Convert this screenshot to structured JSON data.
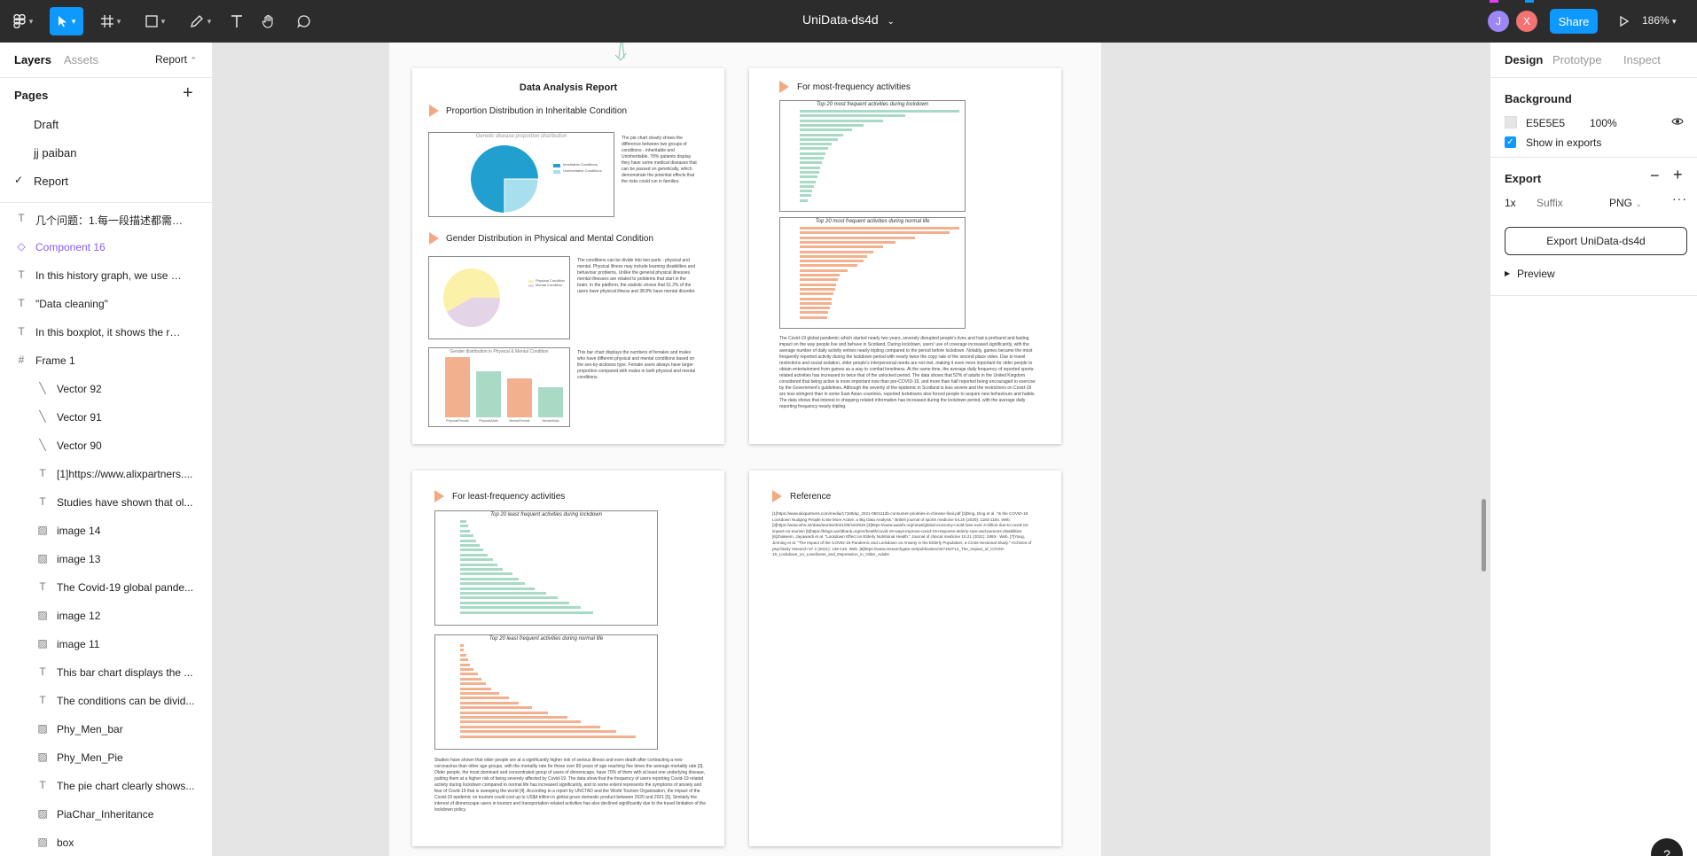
{
  "toolbar": {
    "file_title": "UniData-ds4d",
    "share_label": "Share",
    "zoom": "186%",
    "avatars": [
      {
        "letter": "J",
        "color": "#9b87f5"
      },
      {
        "letter": "X",
        "color": "#f47272"
      }
    ]
  },
  "left_panel": {
    "tabs": [
      "Layers",
      "Assets"
    ],
    "current_page": "Report",
    "pages_title": "Pages",
    "pages": [
      "Draft",
      "jj paiban",
      "Report"
    ],
    "layers": [
      {
        "icon": "text",
        "name": "几个问题：1.每一段描述都需要一..."
      },
      {
        "icon": "component",
        "name": "Component 16"
      },
      {
        "icon": "text",
        "name": "In this history graph, we use ge..."
      },
      {
        "icon": "text",
        "name": "\"Data cleaning\""
      },
      {
        "icon": "text",
        "name": "In this boxplot, it shows the relat..."
      },
      {
        "icon": "frame",
        "name": "Frame 1"
      },
      {
        "icon": "vector",
        "name": "Vector 92"
      },
      {
        "icon": "vector",
        "name": "Vector 91"
      },
      {
        "icon": "vector",
        "name": "Vector 90"
      },
      {
        "icon": "text",
        "name": "[1]https://www.alixpartners...."
      },
      {
        "icon": "text",
        "name": "Studies have shown that ol..."
      },
      {
        "icon": "image",
        "name": "image 14"
      },
      {
        "icon": "image",
        "name": "image 13"
      },
      {
        "icon": "text",
        "name": "The Covid-19 global pande..."
      },
      {
        "icon": "image",
        "name": "image 12"
      },
      {
        "icon": "image",
        "name": "image 11"
      },
      {
        "icon": "text",
        "name": "This bar chart displays the ..."
      },
      {
        "icon": "text",
        "name": "The conditions can be divid..."
      },
      {
        "icon": "image",
        "name": "Phy_Men_bar"
      },
      {
        "icon": "image",
        "name": "Phy_Men_Pie"
      },
      {
        "icon": "text",
        "name": "The pie chart clearly shows..."
      },
      {
        "icon": "image",
        "name": "PiaChar_Inheritance"
      },
      {
        "icon": "image",
        "name": "box"
      }
    ]
  },
  "right_panel": {
    "tabs": [
      "Design",
      "Prototype",
      "Inspect"
    ],
    "background_title": "Background",
    "bg_hex": "E5E5E5",
    "bg_opacity": "100%",
    "show_in_exports": "Show in exports",
    "export_title": "Export",
    "export_scale": "1x",
    "export_suffix_placeholder": "Suffix",
    "export_format": "PNG",
    "export_button": "Export UniData-ds4d",
    "preview_label": "Preview"
  },
  "report": {
    "title": "Data Analysis Report",
    "sec1": "Proportion Distribution in Inheritable Condition",
    "sec1_chart_title": "Genetic disease proportion distribution",
    "sec1_legend": [
      "Inheritable Conditions",
      "Uninheritable Conditions"
    ],
    "sec1_text": "The pie chart clearly shows the difference between two groups of conditions - inheritable and Uninheritable. 78% patients display they have some medical diseases that can be passed on genetically, which demonstrate the potential effects that the risks could run in families.",
    "sec2": "Gender Distribution in Physical and Mental Condition",
    "sec2_text": "The conditions can be divide into two parts - physical and mental. Physical illness may include learning disabilities and behaviour problems. Unlike the general physical illnesses mental illnesses are related to problems that start in the brain. In the platform, the statistic shows that 61.2% of the users have physical illness and 38.8% have mental disorder.",
    "sec2_pie_legend": [
      "Physical Condition",
      "Mental Condition"
    ],
    "sec2_bar_title": "Gender distribution in Physical & Mental Condition",
    "sec2_bar_cats": [
      "Physical/Female",
      "Physical/Male",
      "Mental/Female",
      "Mental/Male"
    ],
    "sec2_bar_text": "This bar chart displays the numbers of females and males who have different physical and mental conditions based on the sex-by-sickness type. Female users always have larger proportion compared with males in both physical and mental conditions.",
    "sec3": "For most-frequency activities",
    "sec3_chart1_title": "Top 20 most frequent activities during lockdown",
    "sec3_chart2_title": "Top 20 most frequent activities during normal life",
    "sec3_text": "The Covid-19 global pandemic which started nearly two years, severely disrupted people's lives and had a profound and lasting impact on the way people live and behave in Scotland. During lockdown, users' use of coverage increased significantly, with the average number of daily activity entries nearly tripling compared to the period before lockdown. Notably, games became the most frequently reported activity during the lockdown period with nearly twice the copy rate of the second place video. Due to travel restrictions and social isolation, older people's interpersonal needs are not met, making it even more important for older people to obtain entertainment from games as a way to combat loneliness. At the same time, the average daily frequency of reported sports-related activities has increased to twice that of the unlocked period. The data shows that 52% of adults in the United Kingdom considered that being active is more important now than pre-COVID-19, and more than half reported being encouraged to exercise by the Government's guidelines. Although the severity of the epidemic in Scotland is less severe and the restrictions on Covid-19 are less stringent than in some East Asian countries, reported lockdowns also forced people to acquire new behaviours and habits. The data shows that interest in shopping related information has increased during the lockdown period, with the average daily reporting frequency nearly tripling.",
    "sec4": "For least-frequency activities",
    "sec4_chart1_title": "Top 20 least frequent activities during lockdown",
    "sec4_chart2_title": "Top 20 least frequent activities during normal life",
    "sec4_text": "Studies have shown that older people are at a significantly higher risk of serious illness and even death after contracting a new coronavirus than other age groups, with the mortality rate for those over 80 years of age reaching five times the average mortality rate [3]. Older people, the most dominant and concentrated group of users of dinnerscape, have 70% of them with at least one underlying disease, putting them at a higher risk of being severely affected by Covid-19. The data show that the frequency of users reporting Covid-19 related activity during lockdown compared to normal life has increased significantly, and to some extent represents the symptoms of anxiety and fear of Covid-19 that is sweeping the world [4]. According to a report by UNCTAD and the World Tourism Organisation, the impact of the Covid-19 epidemic on tourism could cost up to US$4 trillion in global gross domestic product between 2020 and 2021 [5]. Similarly the interest of dinnerscape users in tourism and transportation-related activities has also declined significantly due to the travel limitation of the lockdown policy.",
    "sec5": "Reference",
    "references": "[1]https://www.alixpartners.com/media/17188/ap_2021-0501112b-consumer-priorities-in-chinese-final.pdf [2]Ding, Ding et al. \"Is the COVID-19 Lockdown Nudging People to Be More Active: a Big Data Analysis.\" British journal of sports medicine 54.20 (2020): 1183-1184. Web. [3]https://www.who.int/data/stories/2021/06/16/2020 [4]https://www.wwwfo.org/news/global-economy-could-lose-over-4-trillion-due-to-covid-19-impact-on-tourism [5]https://blogs.worldbank.org/en/health/covid-19-ways-improve-covid-19-response-elderly-care-and-persons-disabilities [6]Jhakeem, Jayawardi et al. \"Lockdown Effect on Elderly Nutritional Health.\" Journal of clinical medicine 10.21 (2021): 2893-. Web. [7]Yang, Jinming et al. \"The Impact of the COVID-19 Pandemic and Lockdown on Anxiety in the Elderly Population: a Cross-Sectional Study.\" Archives of psychiatry research 57.2 (2021): 139-146. Web. [8]https://www.researchgate.net/publication/347162714_The_Impact_of_COVID-19_Lockdown_on_Loneliness_and_Depression_in_Older_Adults"
  },
  "colors": {
    "accent": "#0d99ff",
    "teal": "#a8dac5",
    "salmon": "#f3b08e",
    "pie_blue": "#21a0d0",
    "pie_light": "#a8dfee",
    "pie_yellow": "#fbf1a8",
    "pie_lavender": "#e3d4e8"
  }
}
